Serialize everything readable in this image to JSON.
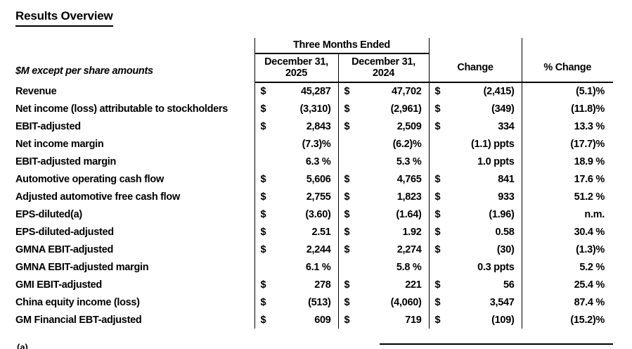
{
  "page": {
    "title": "Results Overview"
  },
  "colors": {
    "text": "#000000",
    "background": "#ffffff",
    "rules": "#000000"
  },
  "table": {
    "caption": "$M except per share amounts",
    "group_header": "Three Months Ended",
    "columns": [
      {
        "line1": "December 31,",
        "line2": "2025"
      },
      {
        "line1": "December 31,",
        "line2": "2024"
      },
      {
        "line1": "Change"
      },
      {
        "line1": "% Change"
      }
    ],
    "rows": [
      {
        "label": "Revenue",
        "c2025": {
          "sym": "$",
          "val": "45,287"
        },
        "c2024": {
          "sym": "$",
          "val": "47,702"
        },
        "change": {
          "sym": "$",
          "val": "(2,415)"
        },
        "pct": "(5.1)%"
      },
      {
        "label": "Net income (loss) attributable to stockholders",
        "c2025": {
          "sym": "$",
          "val": "(3,310)"
        },
        "c2024": {
          "sym": "$",
          "val": "(2,961)"
        },
        "change": {
          "sym": "$",
          "val": "(349)"
        },
        "pct": "(11.8)%"
      },
      {
        "label": "EBIT-adjusted",
        "c2025": {
          "sym": "$",
          "val": "2,843"
        },
        "c2024": {
          "sym": "$",
          "val": "2,509"
        },
        "change": {
          "sym": "$",
          "val": "334"
        },
        "pct": "13.3 %"
      },
      {
        "label": "Net income margin",
        "c2025": {
          "sym": "",
          "val": "(7.3)%"
        },
        "c2024": {
          "sym": "",
          "val": "(6.2)%"
        },
        "change": {
          "sym": "",
          "val": "(1.1) ppts"
        },
        "pct": "(17.7)%"
      },
      {
        "label": "EBIT-adjusted margin",
        "c2025": {
          "sym": "",
          "val": "6.3 %"
        },
        "c2024": {
          "sym": "",
          "val": "5.3 %"
        },
        "change": {
          "sym": "",
          "val": "1.0 ppts"
        },
        "pct": "18.9 %"
      },
      {
        "label": "Automotive operating cash flow",
        "c2025": {
          "sym": "$",
          "val": "5,606"
        },
        "c2024": {
          "sym": "$",
          "val": "4,765"
        },
        "change": {
          "sym": "$",
          "val": "841"
        },
        "pct": "17.6 %"
      },
      {
        "label": "Adjusted automotive free cash flow",
        "c2025": {
          "sym": "$",
          "val": "2,755"
        },
        "c2024": {
          "sym": "$",
          "val": "1,823"
        },
        "change": {
          "sym": "$",
          "val": "933"
        },
        "pct": "51.2 %"
      },
      {
        "label": "EPS-diluted(a)",
        "c2025": {
          "sym": "$",
          "val": "(3.60)"
        },
        "c2024": {
          "sym": "$",
          "val": "(1.64)"
        },
        "change": {
          "sym": "$",
          "val": "(1.96)"
        },
        "pct": "n.m."
      },
      {
        "label": "EPS-diluted-adjusted",
        "c2025": {
          "sym": "$",
          "val": "2.51"
        },
        "c2024": {
          "sym": "$",
          "val": "1.92"
        },
        "change": {
          "sym": "$",
          "val": "0.58"
        },
        "pct": "30.4 %"
      },
      {
        "label": "GMNA EBIT-adjusted",
        "c2025": {
          "sym": "$",
          "val": "2,244"
        },
        "c2024": {
          "sym": "$",
          "val": "2,274"
        },
        "change": {
          "sym": "$",
          "val": "(30)"
        },
        "pct": "(1.3)%"
      },
      {
        "label": "GMNA EBIT-adjusted margin",
        "c2025": {
          "sym": "",
          "val": "6.1 %"
        },
        "c2024": {
          "sym": "",
          "val": "5.8 %"
        },
        "change": {
          "sym": "",
          "val": "0.3 ppts"
        },
        "pct": "5.2 %"
      },
      {
        "label": "GMI EBIT-adjusted",
        "c2025": {
          "sym": "$",
          "val": "278"
        },
        "c2024": {
          "sym": "$",
          "val": "221"
        },
        "change": {
          "sym": "$",
          "val": "56"
        },
        "pct": "25.4 %"
      },
      {
        "label": "China equity income (loss)",
        "c2025": {
          "sym": "$",
          "val": "(513)"
        },
        "c2024": {
          "sym": "$",
          "val": "(4,060)"
        },
        "change": {
          "sym": "$",
          "val": "3,547"
        },
        "pct": "87.4 %"
      },
      {
        "label": "GM Financial EBT-adjusted",
        "c2025": {
          "sym": "$",
          "val": "609"
        },
        "c2024": {
          "sym": "$",
          "val": "719"
        },
        "change": {
          "sym": "$",
          "val": "(109)"
        },
        "pct": "(15.2)%"
      }
    ]
  },
  "footnote": {
    "text": "(a)"
  }
}
